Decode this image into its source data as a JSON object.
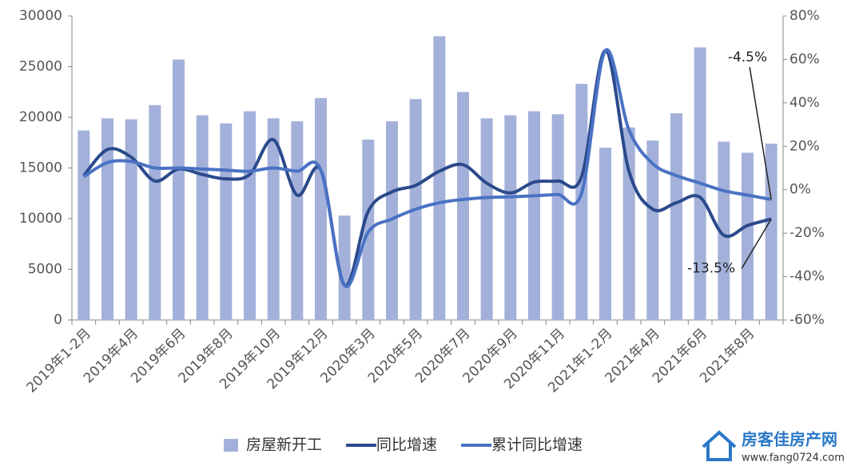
{
  "chart_data": {
    "type": "bar-line",
    "categories": [
      "2019年1-2月",
      null,
      "2019年4月",
      null,
      "2019年6月",
      null,
      "2019年8月",
      null,
      "2019年10月",
      null,
      "2019年12月",
      null,
      "2020年3月",
      null,
      "2020年5月",
      null,
      "2020年7月",
      null,
      "2020年9月",
      null,
      "2020年11月",
      null,
      "2021年1-2月",
      null,
      "2021年4月",
      null,
      "2021年6月",
      null,
      "2021年8月",
      null
    ],
    "series": [
      {
        "name": "房屋新开工",
        "type": "bar",
        "color": "#a3b1da",
        "values": [
          18700,
          19900,
          19800,
          21200,
          25700,
          20200,
          19400,
          20600,
          19900,
          19600,
          21900,
          10300,
          17800,
          19600,
          21800,
          28000,
          22500,
          19900,
          20200,
          20600,
          20300,
          23300,
          17000,
          19000,
          17700,
          20400,
          26900,
          17600,
          16500,
          17400
        ]
      },
      {
        "name": "同比增速",
        "type": "line",
        "axis": "y2",
        "color": "#2b4a8c",
        "values": [
          6.5,
          18.5,
          15,
          4,
          9.5,
          7,
          5,
          7,
          23,
          -2.5,
          9,
          -44,
          -10,
          -1,
          2,
          8.5,
          11.5,
          3,
          -1.5,
          3.5,
          4,
          6,
          64,
          8.5,
          -9,
          -6,
          -3.5,
          -21,
          -16.5,
          -13.5
        ],
        "value_labels": [
          null,
          null,
          null,
          null,
          null,
          null,
          null,
          null,
          null,
          null,
          null,
          null,
          null,
          null,
          null,
          null,
          null,
          null,
          null,
          null,
          null,
          null,
          null,
          null,
          null,
          null,
          null,
          null,
          null,
          "-13.5%"
        ]
      },
      {
        "name": "累计同比增速",
        "type": "line",
        "axis": "y2",
        "color": "#4a72c4",
        "values": [
          6,
          12.5,
          13,
          10,
          10,
          9.5,
          9,
          8.5,
          10,
          8.5,
          9,
          -44,
          -19.5,
          -13.5,
          -9,
          -6,
          -4.5,
          -3.6,
          -3.3,
          -2.8,
          -2.2,
          -1.6,
          64,
          27.5,
          12,
          6.5,
          3,
          -0.5,
          -2.5,
          -4.5
        ],
        "value_labels": [
          null,
          null,
          null,
          null,
          null,
          null,
          null,
          null,
          null,
          null,
          null,
          null,
          null,
          null,
          null,
          null,
          null,
          null,
          null,
          null,
          null,
          null,
          null,
          null,
          null,
          null,
          null,
          null,
          null,
          "-4.5%"
        ]
      }
    ],
    "ylim": [
      0,
      30000
    ],
    "yticks": [
      0,
      5000,
      10000,
      15000,
      20000,
      25000,
      30000
    ],
    "y2lim": [
      -60,
      80
    ],
    "y2ticks": [
      {
        "value": -60,
        "label": "-60%"
      },
      {
        "value": -40,
        "label": "-40%"
      },
      {
        "value": -20,
        "label": "-20%"
      },
      {
        "value": 0,
        "label": "0%"
      },
      {
        "value": 20,
        "label": "20%"
      },
      {
        "value": 40,
        "label": "40%"
      },
      {
        "value": 60,
        "label": "60%"
      },
      {
        "value": 80,
        "label": "80%"
      }
    ],
    "legend": "bottom",
    "grid": false
  },
  "watermark": {
    "name": "房客佳房产网",
    "url": "www.fang0724.com"
  }
}
